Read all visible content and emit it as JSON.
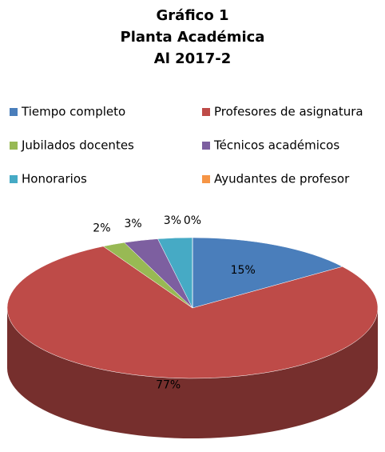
{
  "chart_data": {
    "type": "pie3d",
    "title": [
      "Gráfico 1",
      "Planta Académica",
      "Al 2017-2"
    ],
    "categories": [
      "Tiempo completo",
      "Profesores de asignatura",
      "Jubilados docentes",
      "Técnicos académicos",
      "Honorarios",
      "Ayudantes de profesor"
    ],
    "values": [
      15,
      77,
      2,
      3,
      3,
      0
    ],
    "value_labels": [
      "15%",
      "77%",
      "2%",
      "3%",
      "3%",
      "0%"
    ],
    "colors": [
      "#4a7ebb",
      "#be4b48",
      "#98b954",
      "#7d5fa0",
      "#46aac5",
      "#f69546"
    ],
    "legend": "top"
  }
}
